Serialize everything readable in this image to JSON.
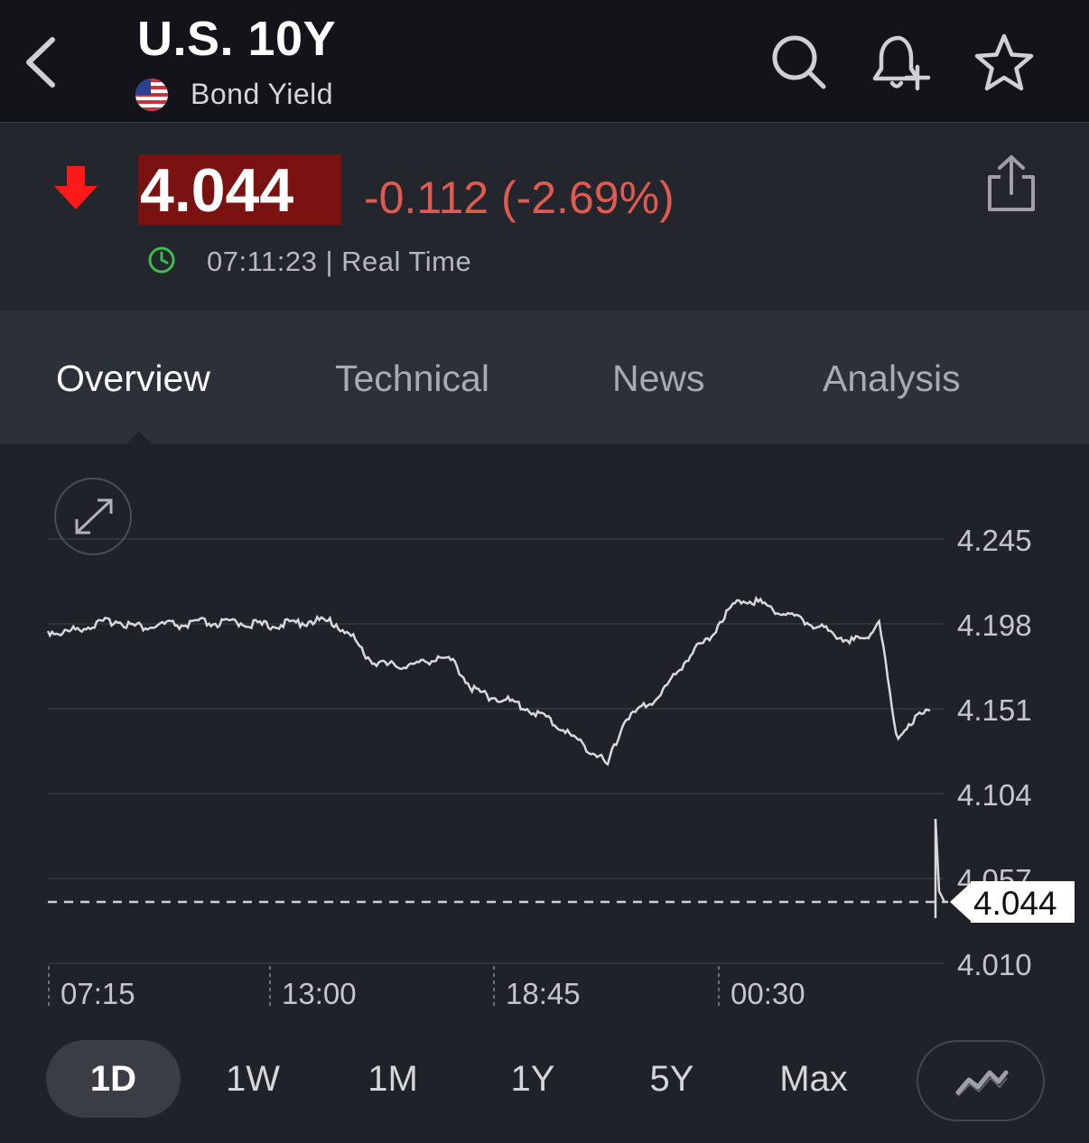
{
  "header": {
    "title": "U.S. 10Y",
    "subtitle": "Bond Yield",
    "icons": [
      "back-icon",
      "search-icon",
      "bell-plus-icon",
      "star-icon"
    ]
  },
  "quote": {
    "price": "4.044",
    "change": "-0.112 (-2.69%)",
    "time": "07:11:23 | Real Time",
    "direction": "down",
    "colors": {
      "down": "#e05a4f",
      "price_bg": "#7a1212",
      "arrow": "#ff1a1a",
      "clock": "#3fb950"
    }
  },
  "tabs": [
    {
      "label": "Overview",
      "active": true
    },
    {
      "label": "Technical",
      "active": false
    },
    {
      "label": "News",
      "active": false
    },
    {
      "label": "Analysis",
      "active": false
    }
  ],
  "chart_data": {
    "type": "line",
    "y_ticks": [
      "4.245",
      "4.198",
      "4.151",
      "4.104",
      "4.057",
      "4.010"
    ],
    "ylim": [
      4.01,
      4.245
    ],
    "x_ticks": [
      "07:15",
      "13:00",
      "18:45",
      "00:30"
    ],
    "current_value": "4.044",
    "series": [
      {
        "values": [
          4.194,
          4.193,
          4.196,
          4.198,
          4.2,
          4.197,
          4.196,
          4.198,
          4.197,
          4.199,
          4.198,
          4.199,
          4.198,
          4.197,
          4.198,
          4.199,
          4.2,
          4.198,
          4.19,
          4.178,
          4.175,
          4.175,
          4.176,
          4.18,
          4.176,
          4.162,
          4.158,
          4.156,
          4.152,
          4.148,
          4.142,
          4.135,
          4.128,
          4.12,
          4.145,
          4.151,
          4.158,
          4.17,
          4.183,
          4.19,
          4.205,
          4.212,
          4.21,
          4.205,
          4.202,
          4.198,
          4.194,
          4.19,
          4.188,
          4.2,
          4.135,
          4.145,
          4.15
        ]
      },
      {
        "values": [
          4.09,
          4.05,
          4.044
        ]
      }
    ],
    "grid": true,
    "dashed_reference_line": "4.044"
  },
  "ranges": [
    {
      "label": "1D",
      "active": true
    },
    {
      "label": "1W",
      "active": false
    },
    {
      "label": "1M",
      "active": false
    },
    {
      "label": "1Y",
      "active": false
    },
    {
      "label": "5Y",
      "active": false
    },
    {
      "label": "Max",
      "active": false
    }
  ]
}
